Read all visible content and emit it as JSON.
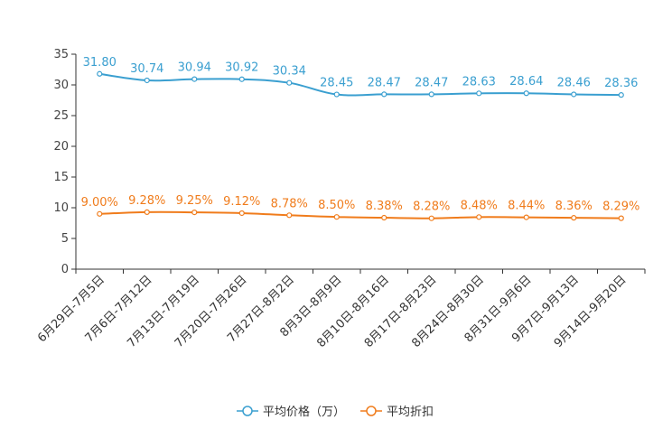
{
  "chart_data": {
    "type": "line",
    "title": "",
    "xlabel": "",
    "ylabel": "",
    "ylim": [
      0,
      35
    ],
    "yticks": [
      "0",
      "5",
      "10",
      "15",
      "20",
      "25",
      "30",
      "35"
    ],
    "categories": [
      "6月29日-7月5日",
      "7月6日-7月12日",
      "7月13日-7月19日",
      "7月20日-7月26日",
      "7月27日-8月2日",
      "8月3日-8月9日",
      "8月10日-8月16日",
      "8月17日-8月23日",
      "8月24日-8月30日",
      "8月31日-9月6日",
      "9月7日-9月13日",
      "9月14日-9月20日"
    ],
    "series": [
      {
        "name": "平均价格（万）",
        "color": "#3a9fd0",
        "values": [
          31.8,
          30.74,
          30.94,
          30.92,
          30.34,
          28.45,
          28.47,
          28.47,
          28.63,
          28.64,
          28.46,
          28.36
        ],
        "labels": [
          "31.80",
          "30.74",
          "30.94",
          "30.92",
          "30.34",
          "28.45",
          "28.47",
          "28.47",
          "28.63",
          "28.64",
          "28.46",
          "28.36"
        ]
      },
      {
        "name": "平均折扣",
        "color": "#f07c1c",
        "values": [
          9.0,
          9.28,
          9.25,
          9.12,
          8.78,
          8.5,
          8.38,
          8.28,
          8.48,
          8.44,
          8.36,
          8.29
        ],
        "labels": [
          "9.00%",
          "9.28%",
          "9.25%",
          "9.12%",
          "8.78%",
          "8.50%",
          "8.38%",
          "8.28%",
          "8.48%",
          "8.44%",
          "8.36%",
          "8.29%"
        ]
      }
    ],
    "legend_position": "bottom-center"
  }
}
